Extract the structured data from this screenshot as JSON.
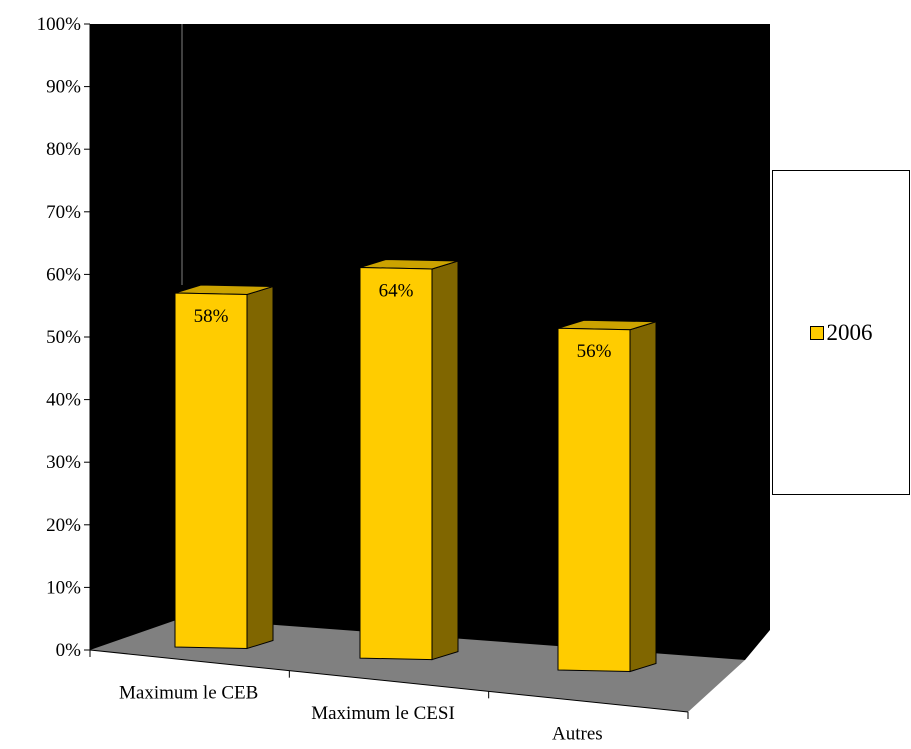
{
  "chart_data": {
    "type": "bar",
    "categories": [
      "Maximum le CEB",
      "Maximum le CESI",
      "Autres"
    ],
    "series": [
      {
        "name": "2006",
        "values": [
          58,
          64,
          56
        ],
        "data_labels": [
          "58%",
          "64%",
          "56%"
        ],
        "color": "#FFCC00"
      }
    ],
    "ylim": [
      0,
      100
    ],
    "y_tick_labels": [
      "0%",
      "10%",
      "20%",
      "30%",
      "40%",
      "50%",
      "60%",
      "70%",
      "80%",
      "90%",
      "100%"
    ],
    "legend_position": "right",
    "style": {
      "three_d": true,
      "back_wall_color": "#000000",
      "floor_color": "#808080",
      "bar_side_color": "#806600",
      "bar_top_color": "#CCA300"
    }
  }
}
